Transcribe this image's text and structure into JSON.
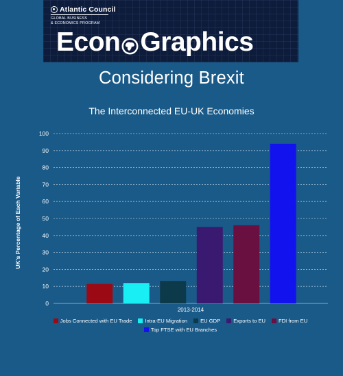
{
  "banner": {
    "org_name": "Atlantic Council",
    "org_subtitle_line1": "GLOBAL BUSINESS",
    "org_subtitle_line2": "& ECONOMICS PROGRAM",
    "logo_left": "Econ",
    "logo_right": "Graphics"
  },
  "page_title": "Considering Brexit",
  "chart_data": {
    "type": "bar",
    "title": "The Interconnected EU-UK Economies",
    "xlabel": "",
    "ylabel": "UK's Percentage of Each Variable",
    "categories": [
      "2013-2014"
    ],
    "ylim": [
      0,
      100
    ],
    "yticks": [
      0,
      10,
      20,
      30,
      40,
      50,
      60,
      70,
      80,
      90,
      100
    ],
    "grid": true,
    "legend_position": "bottom",
    "series": [
      {
        "name": "Jobs Connected with EU Trade",
        "values": [
          11.5
        ],
        "color": "#9b0a14"
      },
      {
        "name": "Intra-EU Migration",
        "values": [
          12
        ],
        "color": "#19eef4"
      },
      {
        "name": "EU GDP",
        "values": [
          13.2
        ],
        "color": "#0c3a4a"
      },
      {
        "name": "Exports to EU",
        "values": [
          45
        ],
        "color": "#3a1a70"
      },
      {
        "name": "FDI from EU",
        "values": [
          46
        ],
        "color": "#6a1040"
      },
      {
        "name": "Top FTSE with EU Branches",
        "values": [
          94
        ],
        "color": "#1212ee"
      }
    ]
  }
}
